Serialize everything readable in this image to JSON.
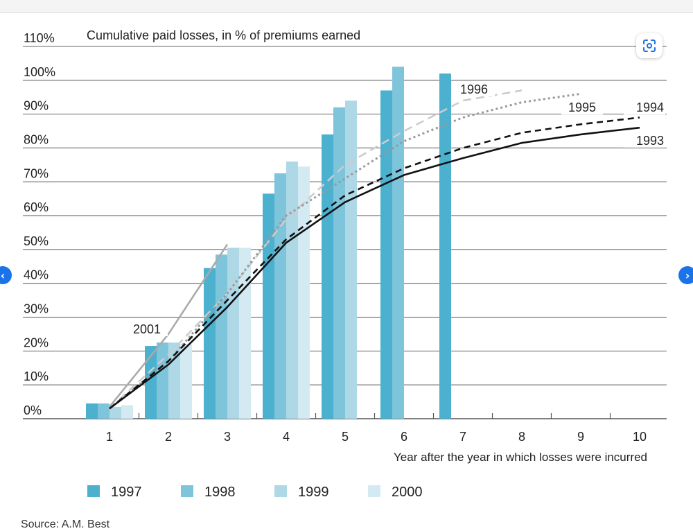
{
  "source_text": "Source: A.M. Best",
  "icons": {
    "lens": "lens-scan-icon",
    "prev": "chevron-left-icon",
    "next": "chevron-right-icon",
    "prev_glyph": "‹",
    "next_glyph": "›"
  },
  "chart_data": {
    "type": "bar+line",
    "title": "Cumulative paid losses, in % of premiums earned",
    "xlabel": "Year after the year in which losses were incurred",
    "ylabel": "",
    "x": [
      1,
      2,
      3,
      4,
      5,
      6,
      7,
      8,
      9,
      10
    ],
    "ylim": [
      0,
      110
    ],
    "yticks": [
      0,
      10,
      20,
      30,
      40,
      50,
      60,
      70,
      80,
      90,
      100,
      110
    ],
    "ytick_labels": [
      "0%",
      "10%",
      "20%",
      "30%",
      "40%",
      "50%",
      "60%",
      "70%",
      "80%",
      "90%",
      "100%",
      "110%"
    ],
    "grid": true,
    "legend_position": "bottom",
    "bar_series": [
      {
        "name": "1997",
        "color": "#4bb1cf",
        "values": [
          4.5,
          21.5,
          44.5,
          66.5,
          84,
          97,
          102
        ]
      },
      {
        "name": "1998",
        "color": "#7ec4da",
        "values": [
          4.5,
          22.5,
          48.5,
          72.5,
          92,
          104
        ]
      },
      {
        "name": "1999",
        "color": "#afd8e7",
        "values": [
          3.5,
          22.5,
          50.5,
          76,
          94
        ]
      },
      {
        "name": "2000",
        "color": "#d4eaf3",
        "values": [
          4,
          22,
          50.5,
          74.5
        ]
      }
    ],
    "line_series": [
      {
        "name": "2001",
        "style": "solid",
        "color": "#aaaaaa",
        "label": "2001",
        "x": [
          1,
          2,
          3.0
        ],
        "values": [
          3.5,
          25,
          51.5
        ]
      },
      {
        "name": "1996",
        "style": "longdash",
        "color": "#cccccc",
        "label": "1996",
        "x": [
          1,
          2,
          3,
          4,
          5,
          6,
          7,
          8
        ],
        "values": [
          3,
          19,
          37,
          59,
          75,
          85,
          94,
          97
        ]
      },
      {
        "name": "1995",
        "style": "dotted",
        "color": "#999999",
        "label": "1995",
        "x": [
          1,
          2,
          3,
          4,
          5,
          6,
          7,
          8,
          9
        ],
        "values": [
          3,
          17,
          37,
          60,
          71,
          82,
          89,
          93.5,
          96
        ]
      },
      {
        "name": "1994",
        "style": "dashed",
        "color": "#111111",
        "label": "1994",
        "x": [
          1,
          2,
          3,
          4,
          5,
          6,
          7,
          8,
          9,
          10
        ],
        "values": [
          3,
          17,
          35,
          53,
          66,
          74,
          80,
          84.5,
          87,
          89
        ]
      },
      {
        "name": "1993",
        "style": "solid",
        "color": "#111111",
        "label": "1993",
        "x": [
          1,
          2,
          3,
          4,
          5,
          6,
          7,
          8,
          9,
          10
        ],
        "values": [
          3,
          16,
          33,
          52,
          64,
          72,
          77,
          81.5,
          84,
          86
        ]
      }
    ]
  }
}
